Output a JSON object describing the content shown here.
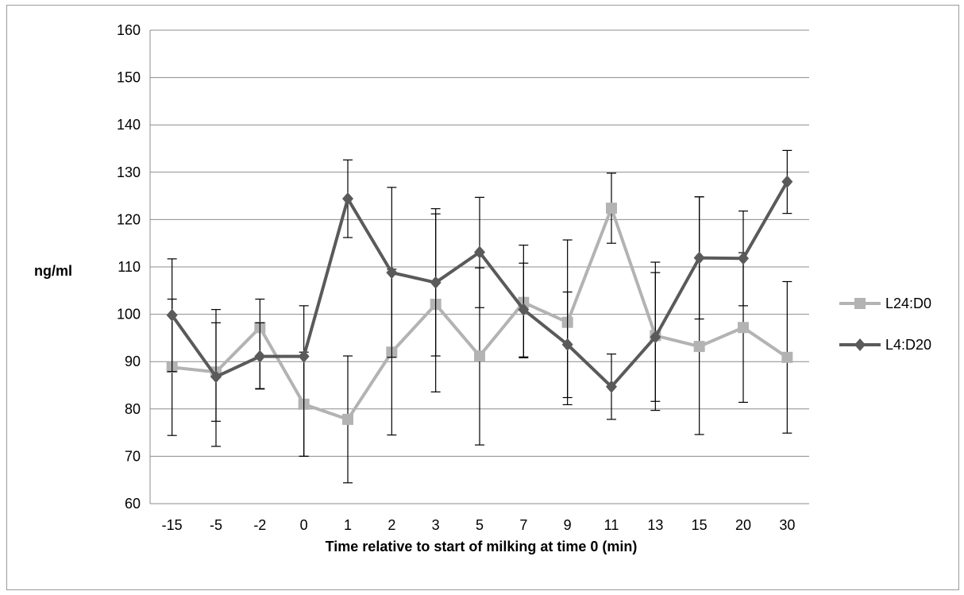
{
  "chart_data": {
    "type": "line",
    "title": "",
    "xlabel": "Time relative to start of milking at time 0 (min)",
    "ylabel": "ng/ml",
    "ylim": [
      60,
      160
    ],
    "yticks": [
      60,
      70,
      80,
      90,
      100,
      110,
      120,
      130,
      140,
      150,
      160
    ],
    "grid": true,
    "legend_position": "right",
    "categories": [
      "-15",
      "-5",
      "-2",
      "0",
      "1",
      "2",
      "3",
      "5",
      "7",
      "9",
      "11",
      "13",
      "15",
      "20",
      "30"
    ],
    "series": [
      {
        "name": "L24:D0",
        "color": "#b3b3b3",
        "marker": "square",
        "values": [
          88.8,
          87.8,
          97.2,
          81.0,
          77.8,
          92.0,
          102.1,
          91.2,
          102.5,
          98.3,
          122.4,
          95.5,
          93.2,
          97.2,
          90.9
        ],
        "error_low": [
          74.4,
          77.4,
          84.3,
          70.0,
          64.4,
          74.5,
          83.6,
          72.4,
          91.0,
          80.9,
          115.0,
          79.7,
          74.6,
          81.4,
          74.9
        ],
        "error_high": [
          103.2,
          98.2,
          103.2,
          92.0,
          91.2,
          109.5,
          121.2,
          109.8,
          114.6,
          115.7,
          129.8,
          111.0,
          124.8,
          113.0,
          106.9
        ]
      },
      {
        "name": "L4:D20",
        "color": "#5a5a5a",
        "marker": "diamond",
        "values": [
          99.8,
          86.8,
          91.1,
          91.1,
          124.4,
          108.8,
          106.7,
          113.1,
          101.0,
          93.6,
          84.7,
          95.2,
          111.9,
          111.8,
          128.0
        ],
        "error_low": [
          87.9,
          72.1,
          84.2,
          70.0,
          116.2,
          90.9,
          91.2,
          101.4,
          90.8,
          82.4,
          77.8,
          81.6,
          99.0,
          101.8,
          121.3
        ],
        "error_high": [
          111.7,
          101.0,
          98.2,
          101.8,
          132.6,
          126.8,
          122.3,
          124.7,
          110.8,
          104.7,
          91.6,
          108.8,
          124.8,
          121.8,
          134.6
        ]
      }
    ]
  }
}
